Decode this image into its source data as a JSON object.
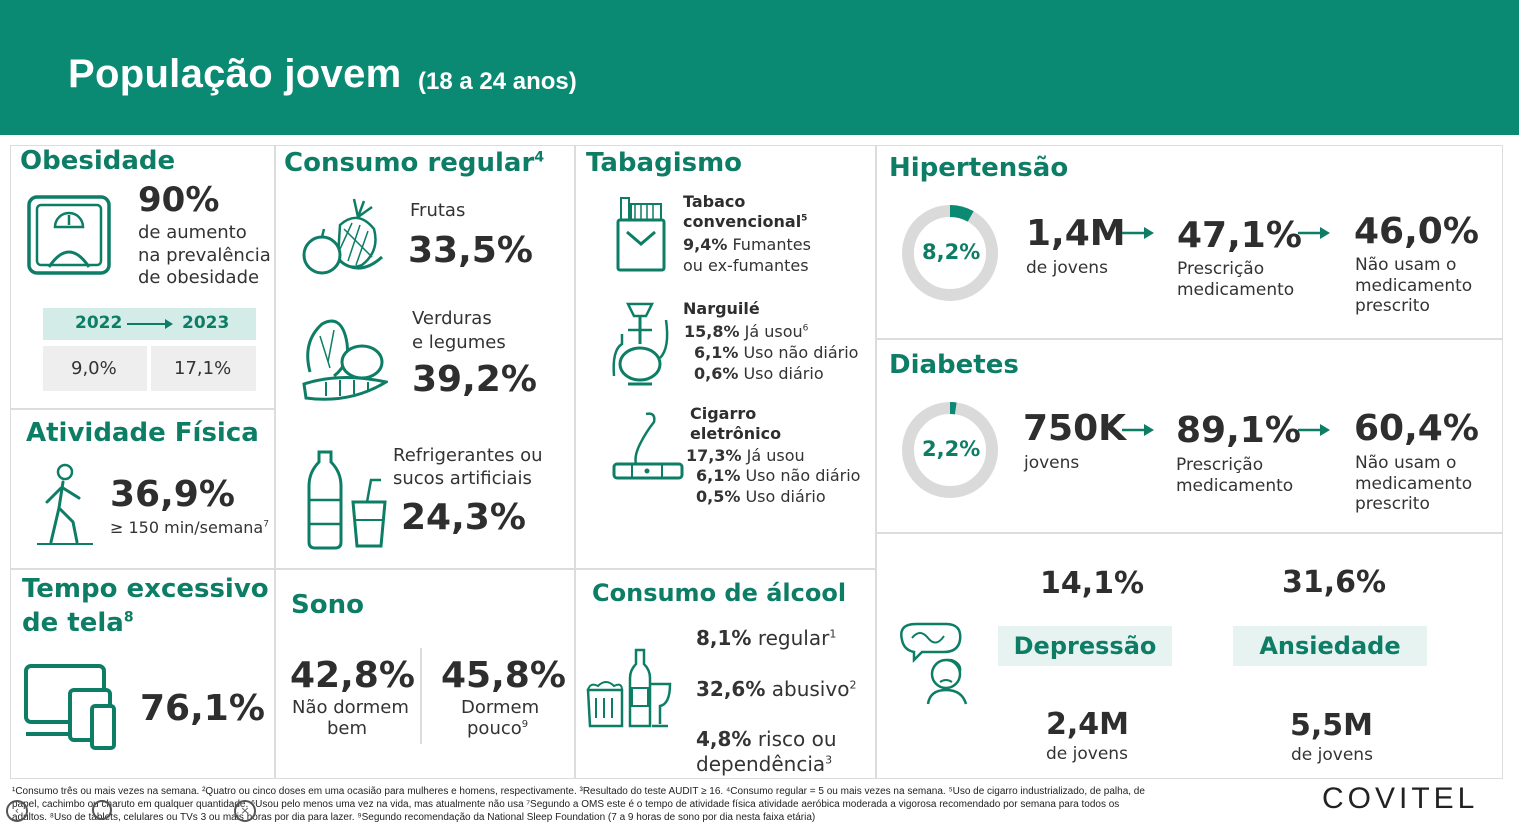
{
  "header": {
    "title": "População jovem",
    "subtitle": "(18 a 24 anos)"
  },
  "obesidade": {
    "heading": "Obesidade",
    "pct": "90%",
    "desc1": "de aumento",
    "desc2": "na prevalência",
    "desc3": "de obesidade",
    "year1": "2022",
    "year2": "2023",
    "val1": "9,0%",
    "val2": "17,1%"
  },
  "atividade": {
    "heading": "Atividade Física",
    "pct": "36,9%",
    "desc": "≥ 150 min/semana",
    "sup": "7"
  },
  "tela": {
    "heading1": "Tempo excessivo",
    "heading2": "de tela",
    "sup": "8",
    "pct": "76,1%"
  },
  "consumo": {
    "heading": "Consumo regular",
    "sup": "4",
    "frutas_label": "Frutas",
    "frutas_pct": "33,5%",
    "verduras_label1": "Verduras",
    "verduras_label2": "e legumes",
    "verduras_pct": "39,2%",
    "refri_label1": "Refrigerantes ou",
    "refri_label2": "sucos artificiais",
    "refri_pct": "24,3%"
  },
  "sono": {
    "heading": "Sono",
    "pct1": "42,8%",
    "label1a": "Não dormem",
    "label1b": "bem",
    "pct2": "45,8%",
    "label2a": "Dormem",
    "label2b": "pouco",
    "sup2": "9"
  },
  "tabagismo": {
    "heading": "Tabagismo",
    "tabaco_title1": "Tabaco",
    "tabaco_title2": "convencional",
    "tabaco_sup": "5",
    "tabaco_pct": "9,4%",
    "tabaco_l1": "Fumantes",
    "tabaco_l2": "ou ex-fumantes",
    "narg_title": "Narguilé",
    "narg_r1_pct": "15,8%",
    "narg_r1_l": "Já usou",
    "narg_r1_sup": "6",
    "narg_r2_pct": "6,1%",
    "narg_r2_l": "Uso não diário",
    "narg_r3_pct": "0,6%",
    "narg_r3_l": "Uso diário",
    "cig_title1": "Cigarro",
    "cig_title2": "eletrônico",
    "cig_r1_pct": "17,3%",
    "cig_r1_l": "Já usou",
    "cig_r2_pct": "6,1%",
    "cig_r2_l": "Uso não diário",
    "cig_r3_pct": "0,5%",
    "cig_r3_l": "Uso diário"
  },
  "alcool": {
    "heading": "Consumo de álcool",
    "r1_pct": "8,1%",
    "r1_l": "regular",
    "r1_sup": "1",
    "r2_pct": "32,6%",
    "r2_l": "abusivo",
    "r2_sup": "2",
    "r3_pct": "4,8%",
    "r3_l1": "risco ou",
    "r3_l2": "dependência",
    "r3_sup": "3"
  },
  "hipertensao": {
    "heading": "Hipertensão",
    "donut": "8,2%",
    "donut_value": 8.2,
    "n": "1,4M",
    "n_l": "de jovens",
    "p1": "47,1%",
    "p1_l1": "Prescrição",
    "p1_l2": "medicamento",
    "p2": "46,0%",
    "p2_l1": "Não usam o",
    "p2_l2": "medicamento",
    "p2_l3": "prescrito"
  },
  "diabetes": {
    "heading": "Diabetes",
    "donut": "2,2%",
    "donut_value": 2.2,
    "n": "750K",
    "n_l": "jovens",
    "p1": "89,1%",
    "p1_l1": "Prescrição",
    "p1_l2": "medicamento",
    "p2": "60,4%",
    "p2_l1": "Não usam o",
    "p2_l2": "medicamento",
    "p2_l3": "prescrito"
  },
  "mental": {
    "dep_pct": "14,1%",
    "dep_label": "Depressão",
    "dep_n": "2,4M",
    "dep_n_l": "de jovens",
    "ans_pct": "31,6%",
    "ans_label": "Ansiedade",
    "ans_n": "5,5M",
    "ans_n_l": "de jovens"
  },
  "footnotes": {
    "line1": "¹Consumo três ou mais vezes na semana. ²Quatro ou cinco doses em uma ocasião para mulheres e homens, respectivamente. ³Resultado do teste AUDIT ≥ 16. ⁴Consumo regular = 5 ou mais vezes na semana. ⁵Uso de cigarro industrializado, de palha, de",
    "line2": "papel, cachimbo ou charuto em qualquer quantidade. ⁶Usou pelo menos uma vez na vida, mas atualmente não usa ⁷Segundo a OMS este é o tempo de atividade física atividade aeróbica moderada a vigorosa recomendado por semana para todos os",
    "line3": "adultos. ⁸Uso de tablets, celulares ou TVs 3 ou mais horas por dia para lazer. ⁹Segundo recomendação da National Sleep Foundation (7 a 9 horas de sono por dia nesta faixa etária)"
  },
  "brand": {
    "name": "COVITEL"
  },
  "colors": {
    "accent": "#0a8a72",
    "heading": "#0e7d66",
    "donut_track": "#dadada"
  }
}
